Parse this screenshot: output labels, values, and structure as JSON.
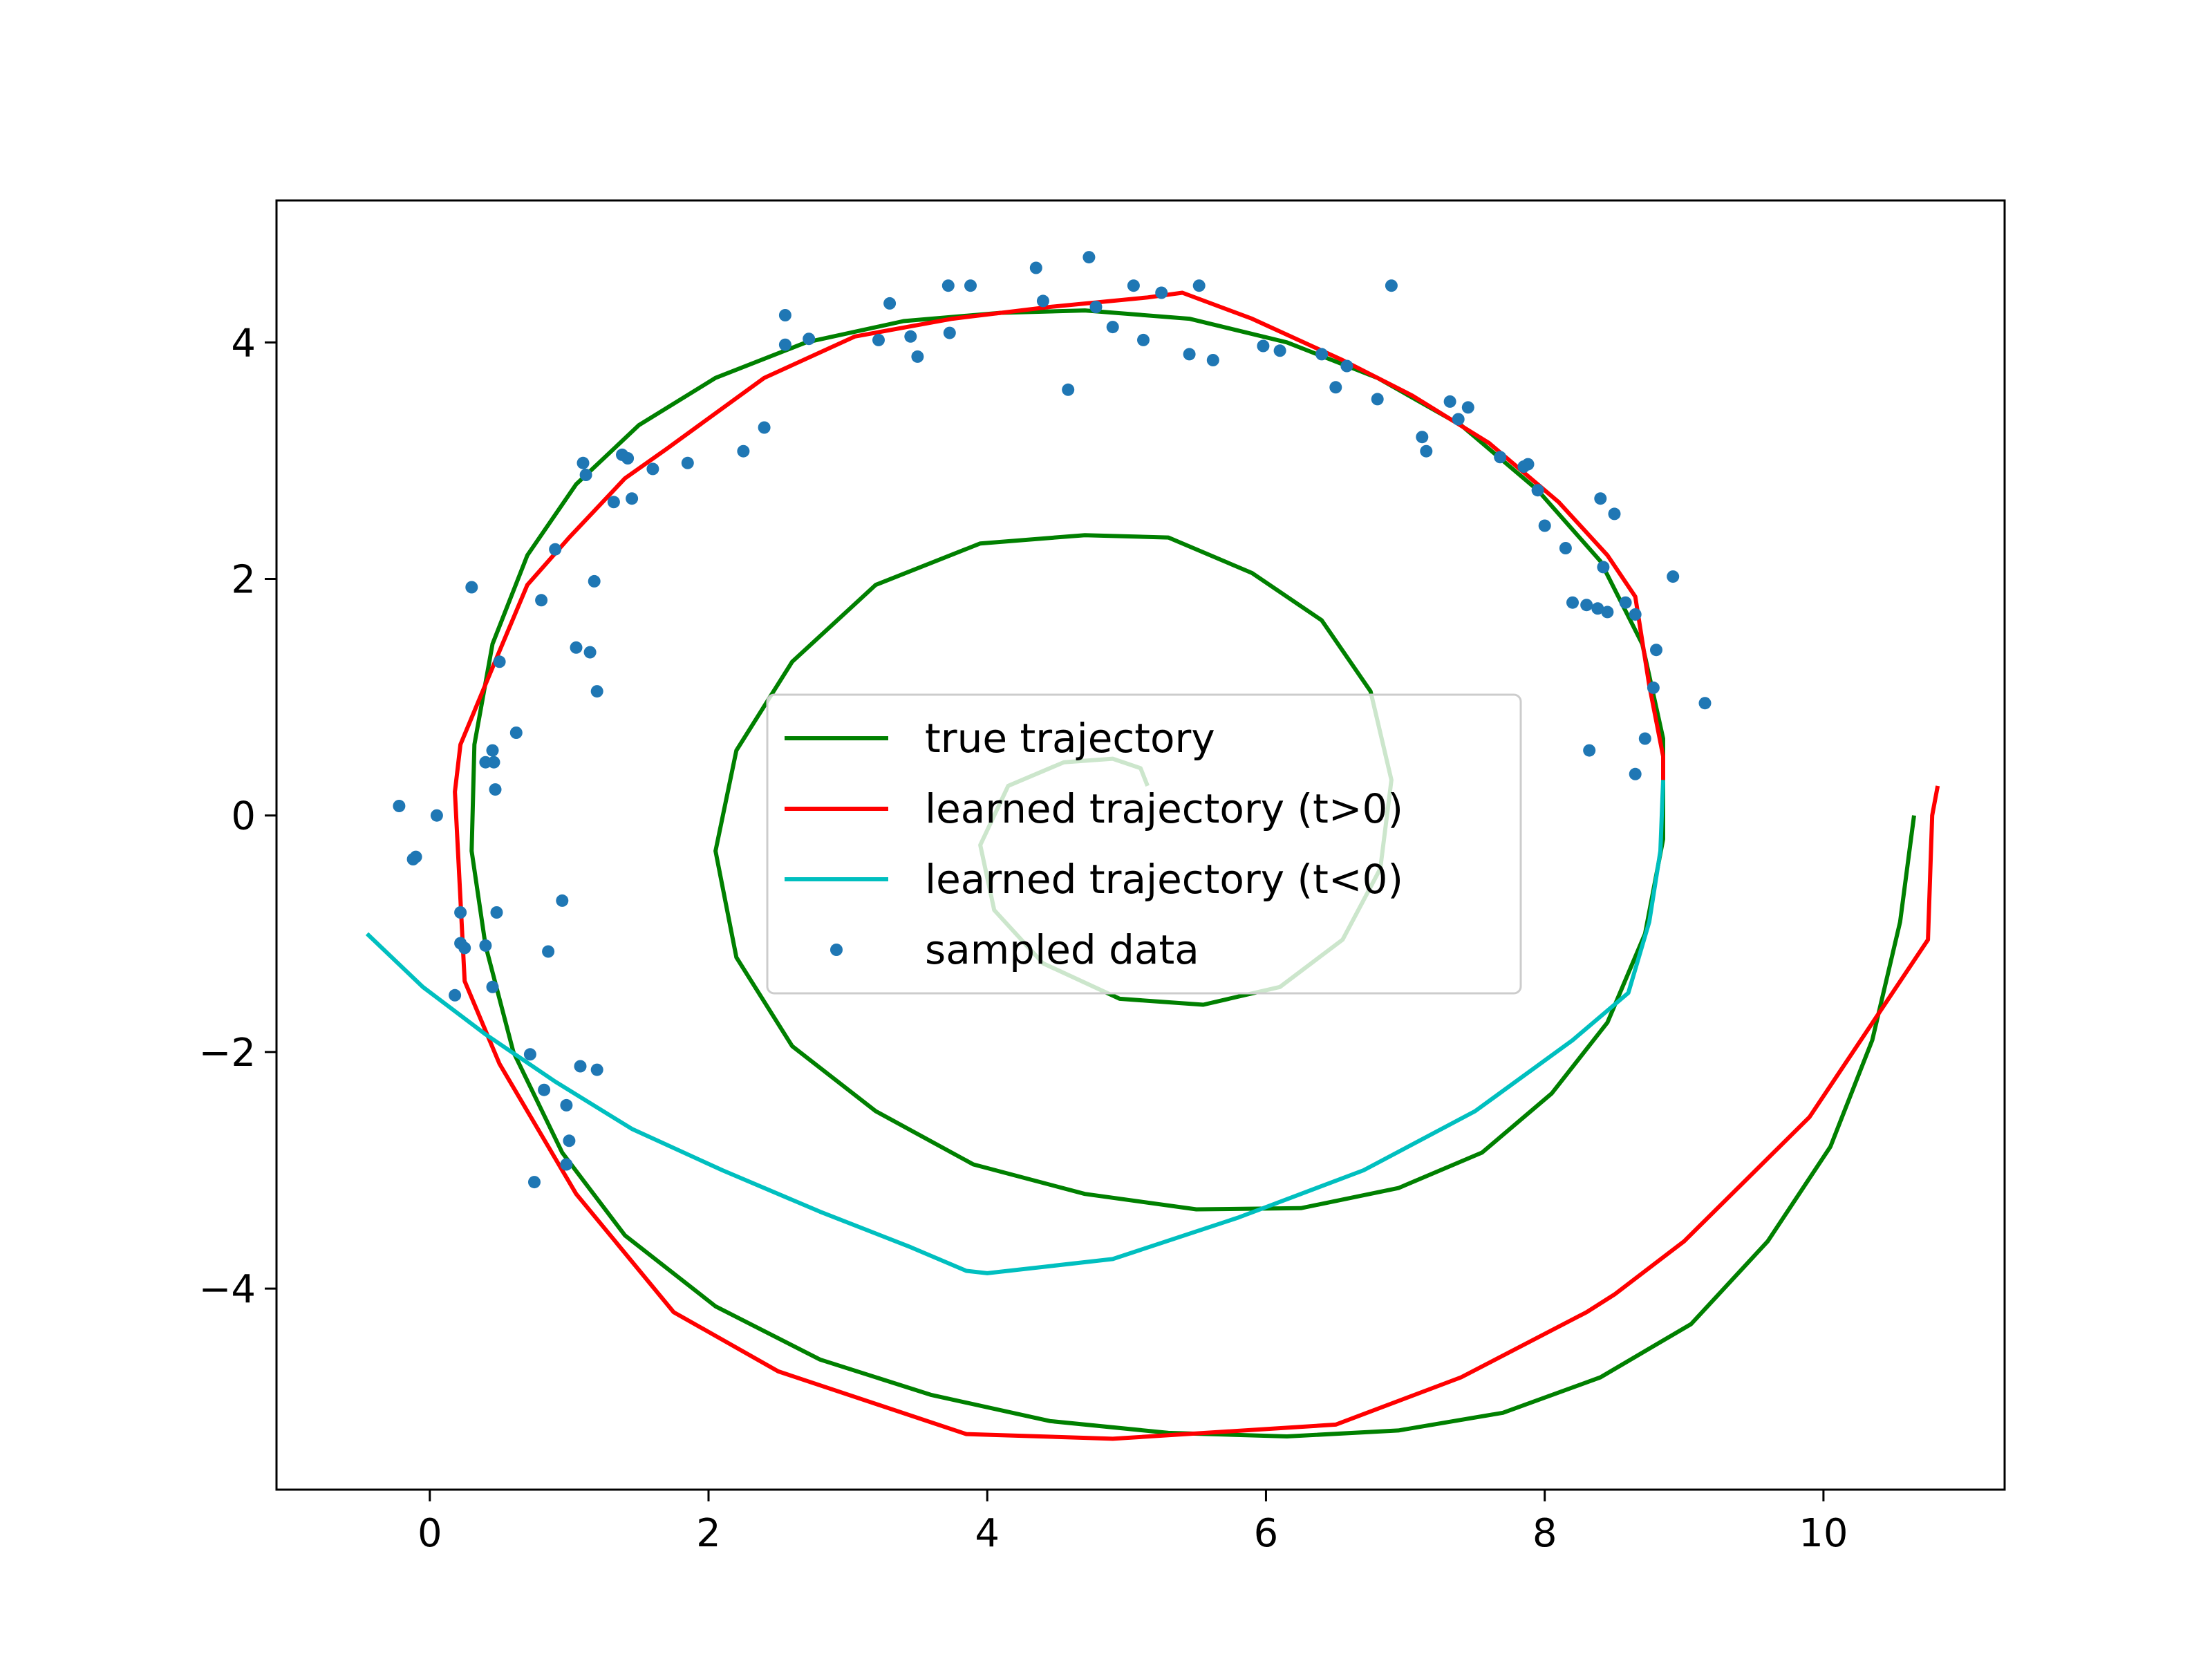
{
  "chart_data": {
    "type": "line",
    "xlim": [
      -1.1,
      11.3
    ],
    "ylim": [
      -5.7,
      5.2
    ],
    "xticks": [
      0,
      2,
      4,
      6,
      8,
      10
    ],
    "yticks": [
      -4,
      -2,
      0,
      2,
      4
    ],
    "xtick_labels": [
      "0",
      "2",
      "4",
      "6",
      "8",
      "10"
    ],
    "ytick_labels": [
      "−4",
      "−2",
      "0",
      "2",
      "4"
    ],
    "legend_position": "center",
    "grid": false,
    "series": [
      {
        "name": "true trajectory",
        "kind": "line",
        "color": "#008000",
        "x": [
          10.65,
          10.55,
          10.35,
          10.05,
          9.6,
          9.05,
          8.4,
          7.7,
          6.95,
          6.15,
          5.3,
          4.45,
          3.6,
          2.8,
          2.05,
          1.4,
          0.95,
          0.6,
          0.4,
          0.3,
          0.32,
          0.45,
          0.7,
          1.05,
          1.5,
          2.05,
          2.7,
          3.4,
          4.1,
          4.7,
          5.45,
          6.15,
          6.8,
          7.4,
          7.95,
          8.4,
          8.7,
          8.85,
          8.85,
          8.72,
          8.45,
          8.05,
          7.55,
          6.95,
          6.25,
          5.5,
          4.7,
          3.9,
          3.2,
          2.6,
          2.2,
          2.05,
          2.2,
          2.6,
          3.2,
          3.95,
          4.7,
          5.3,
          5.9,
          6.4,
          6.75,
          6.9,
          6.82,
          6.55,
          6.1,
          5.55,
          4.95,
          4.4,
          4.05,
          3.95,
          4.15,
          4.55,
          4.9,
          5.1,
          5.15
        ],
        "y": [
          0.0,
          -0.9,
          -1.9,
          -2.8,
          -3.6,
          -4.3,
          -4.75,
          -5.05,
          -5.2,
          -5.25,
          -5.22,
          -5.12,
          -4.9,
          -4.6,
          -4.15,
          -3.55,
          -2.85,
          -2.0,
          -1.1,
          -0.3,
          0.6,
          1.45,
          2.2,
          2.8,
          3.3,
          3.7,
          4.0,
          4.18,
          4.25,
          4.27,
          4.2,
          4.0,
          3.7,
          3.3,
          2.75,
          2.15,
          1.45,
          0.65,
          -0.2,
          -1.0,
          -1.75,
          -2.35,
          -2.85,
          -3.15,
          -3.32,
          -3.33,
          -3.2,
          -2.95,
          -2.5,
          -1.95,
          -1.2,
          -0.3,
          0.55,
          1.3,
          1.95,
          2.3,
          2.37,
          2.35,
          2.05,
          1.65,
          1.05,
          0.3,
          -0.45,
          -1.05,
          -1.45,
          -1.6,
          -1.55,
          -1.25,
          -0.8,
          -0.25,
          0.25,
          0.45,
          0.48,
          0.4,
          0.25
        ]
      },
      {
        "name": "learned trajectory (t>0)",
        "kind": "line",
        "color": "#ff0000",
        "x": [
          10.82,
          10.78,
          10.75,
          9.9,
          9.0,
          8.5,
          8.3,
          7.4,
          6.5,
          4.9,
          3.85,
          2.5,
          1.75,
          1.05,
          0.5,
          0.25,
          0.18,
          0.22,
          0.45,
          0.7,
          1.0,
          1.4,
          1.7,
          2.4,
          3.05,
          3.75,
          4.45,
          5.15,
          5.4,
          5.9,
          6.55,
          7.05,
          7.6,
          8.1,
          8.45,
          8.65,
          8.75,
          8.85,
          8.85
        ],
        "y": [
          0.25,
          0.0,
          -1.05,
          -2.55,
          -3.6,
          -4.05,
          -4.2,
          -4.75,
          -5.15,
          -5.27,
          -5.23,
          -4.7,
          -4.2,
          -3.2,
          -2.1,
          -1.4,
          0.2,
          0.6,
          1.25,
          1.95,
          2.35,
          2.85,
          3.1,
          3.7,
          4.05,
          4.2,
          4.3,
          4.38,
          4.42,
          4.2,
          3.85,
          3.55,
          3.15,
          2.65,
          2.2,
          1.85,
          1.1,
          0.5,
          0.3
        ]
      },
      {
        "name": "learned trajectory (t<0)",
        "kind": "line",
        "color": "#00bfbf",
        "x": [
          -0.45,
          -0.05,
          0.4,
          0.9,
          1.45,
          2.1,
          2.8,
          3.45,
          3.85,
          4.0,
          4.9,
          5.8,
          6.7,
          7.5,
          8.2,
          8.6,
          8.75,
          8.83,
          8.85
        ],
        "y": [
          -1.0,
          -1.45,
          -1.85,
          -2.25,
          -2.65,
          -3.0,
          -3.35,
          -3.65,
          -3.85,
          -3.87,
          -3.75,
          -3.4,
          -3.0,
          -2.5,
          -1.9,
          -1.5,
          -0.9,
          -0.3,
          0.3
        ]
      },
      {
        "name": "sampled data",
        "kind": "scatter",
        "color": "#1f77b4",
        "x": [
          -0.22,
          -0.1,
          -0.12,
          0.05,
          0.18,
          0.22,
          0.25,
          0.3,
          0.4,
          0.45,
          0.47,
          0.48,
          0.46,
          0.5,
          0.62,
          0.72,
          0.8,
          0.85,
          0.9,
          0.95,
          0.98,
          1.0,
          1.05,
          1.1,
          1.12,
          1.15,
          1.18,
          1.2,
          1.32,
          1.38,
          1.42,
          1.45,
          1.6,
          1.85,
          2.25,
          2.4,
          2.55,
          2.55,
          2.72,
          3.22,
          3.3,
          3.45,
          3.5,
          3.72,
          3.73,
          3.88,
          4.35,
          4.4,
          4.58,
          4.73,
          4.78,
          4.9,
          5.05,
          5.12,
          5.25,
          5.45,
          5.52,
          5.62,
          5.98,
          6.1,
          6.4,
          6.5,
          6.58,
          6.8,
          6.9,
          7.12,
          7.15,
          7.32,
          7.38,
          7.45,
          7.68,
          7.85,
          7.88,
          7.95,
          8.0,
          8.15,
          8.2,
          8.3,
          8.32,
          8.38,
          8.4,
          8.42,
          8.45,
          8.5,
          8.58,
          8.65,
          8.65,
          8.72,
          8.78,
          8.8,
          8.92,
          9.15,
          0.75,
          0.98,
          0.45,
          1.08,
          0.22,
          0.82,
          1.2,
          0.4
        ],
        "y": [
          0.08,
          -0.35,
          -0.37,
          0.0,
          -1.52,
          -0.82,
          -1.12,
          1.93,
          0.45,
          0.55,
          0.22,
          -0.82,
          0.45,
          1.3,
          0.7,
          -2.02,
          1.82,
          -1.15,
          2.25,
          -0.72,
          -2.45,
          -2.75,
          1.42,
          2.98,
          2.88,
          1.38,
          1.98,
          1.05,
          2.65,
          3.05,
          3.02,
          2.68,
          2.93,
          2.98,
          3.08,
          3.28,
          3.98,
          4.23,
          4.03,
          4.02,
          4.33,
          4.05,
          3.88,
          4.48,
          4.08,
          4.48,
          4.63,
          4.35,
          3.6,
          4.72,
          4.3,
          4.13,
          4.48,
          4.02,
          4.42,
          3.9,
          4.48,
          3.85,
          3.97,
          3.93,
          3.9,
          3.62,
          3.8,
          3.52,
          4.48,
          3.2,
          3.08,
          3.5,
          3.35,
          3.45,
          3.03,
          2.95,
          2.97,
          2.75,
          2.45,
          2.26,
          1.8,
          1.78,
          0.55,
          1.75,
          2.68,
          2.1,
          1.72,
          2.55,
          1.8,
          1.7,
          0.35,
          0.65,
          1.08,
          1.4,
          2.02,
          0.95,
          -3.1,
          -2.95,
          -1.45,
          -2.12,
          -1.08,
          -2.32,
          -2.15,
          -1.1
        ]
      }
    ]
  }
}
